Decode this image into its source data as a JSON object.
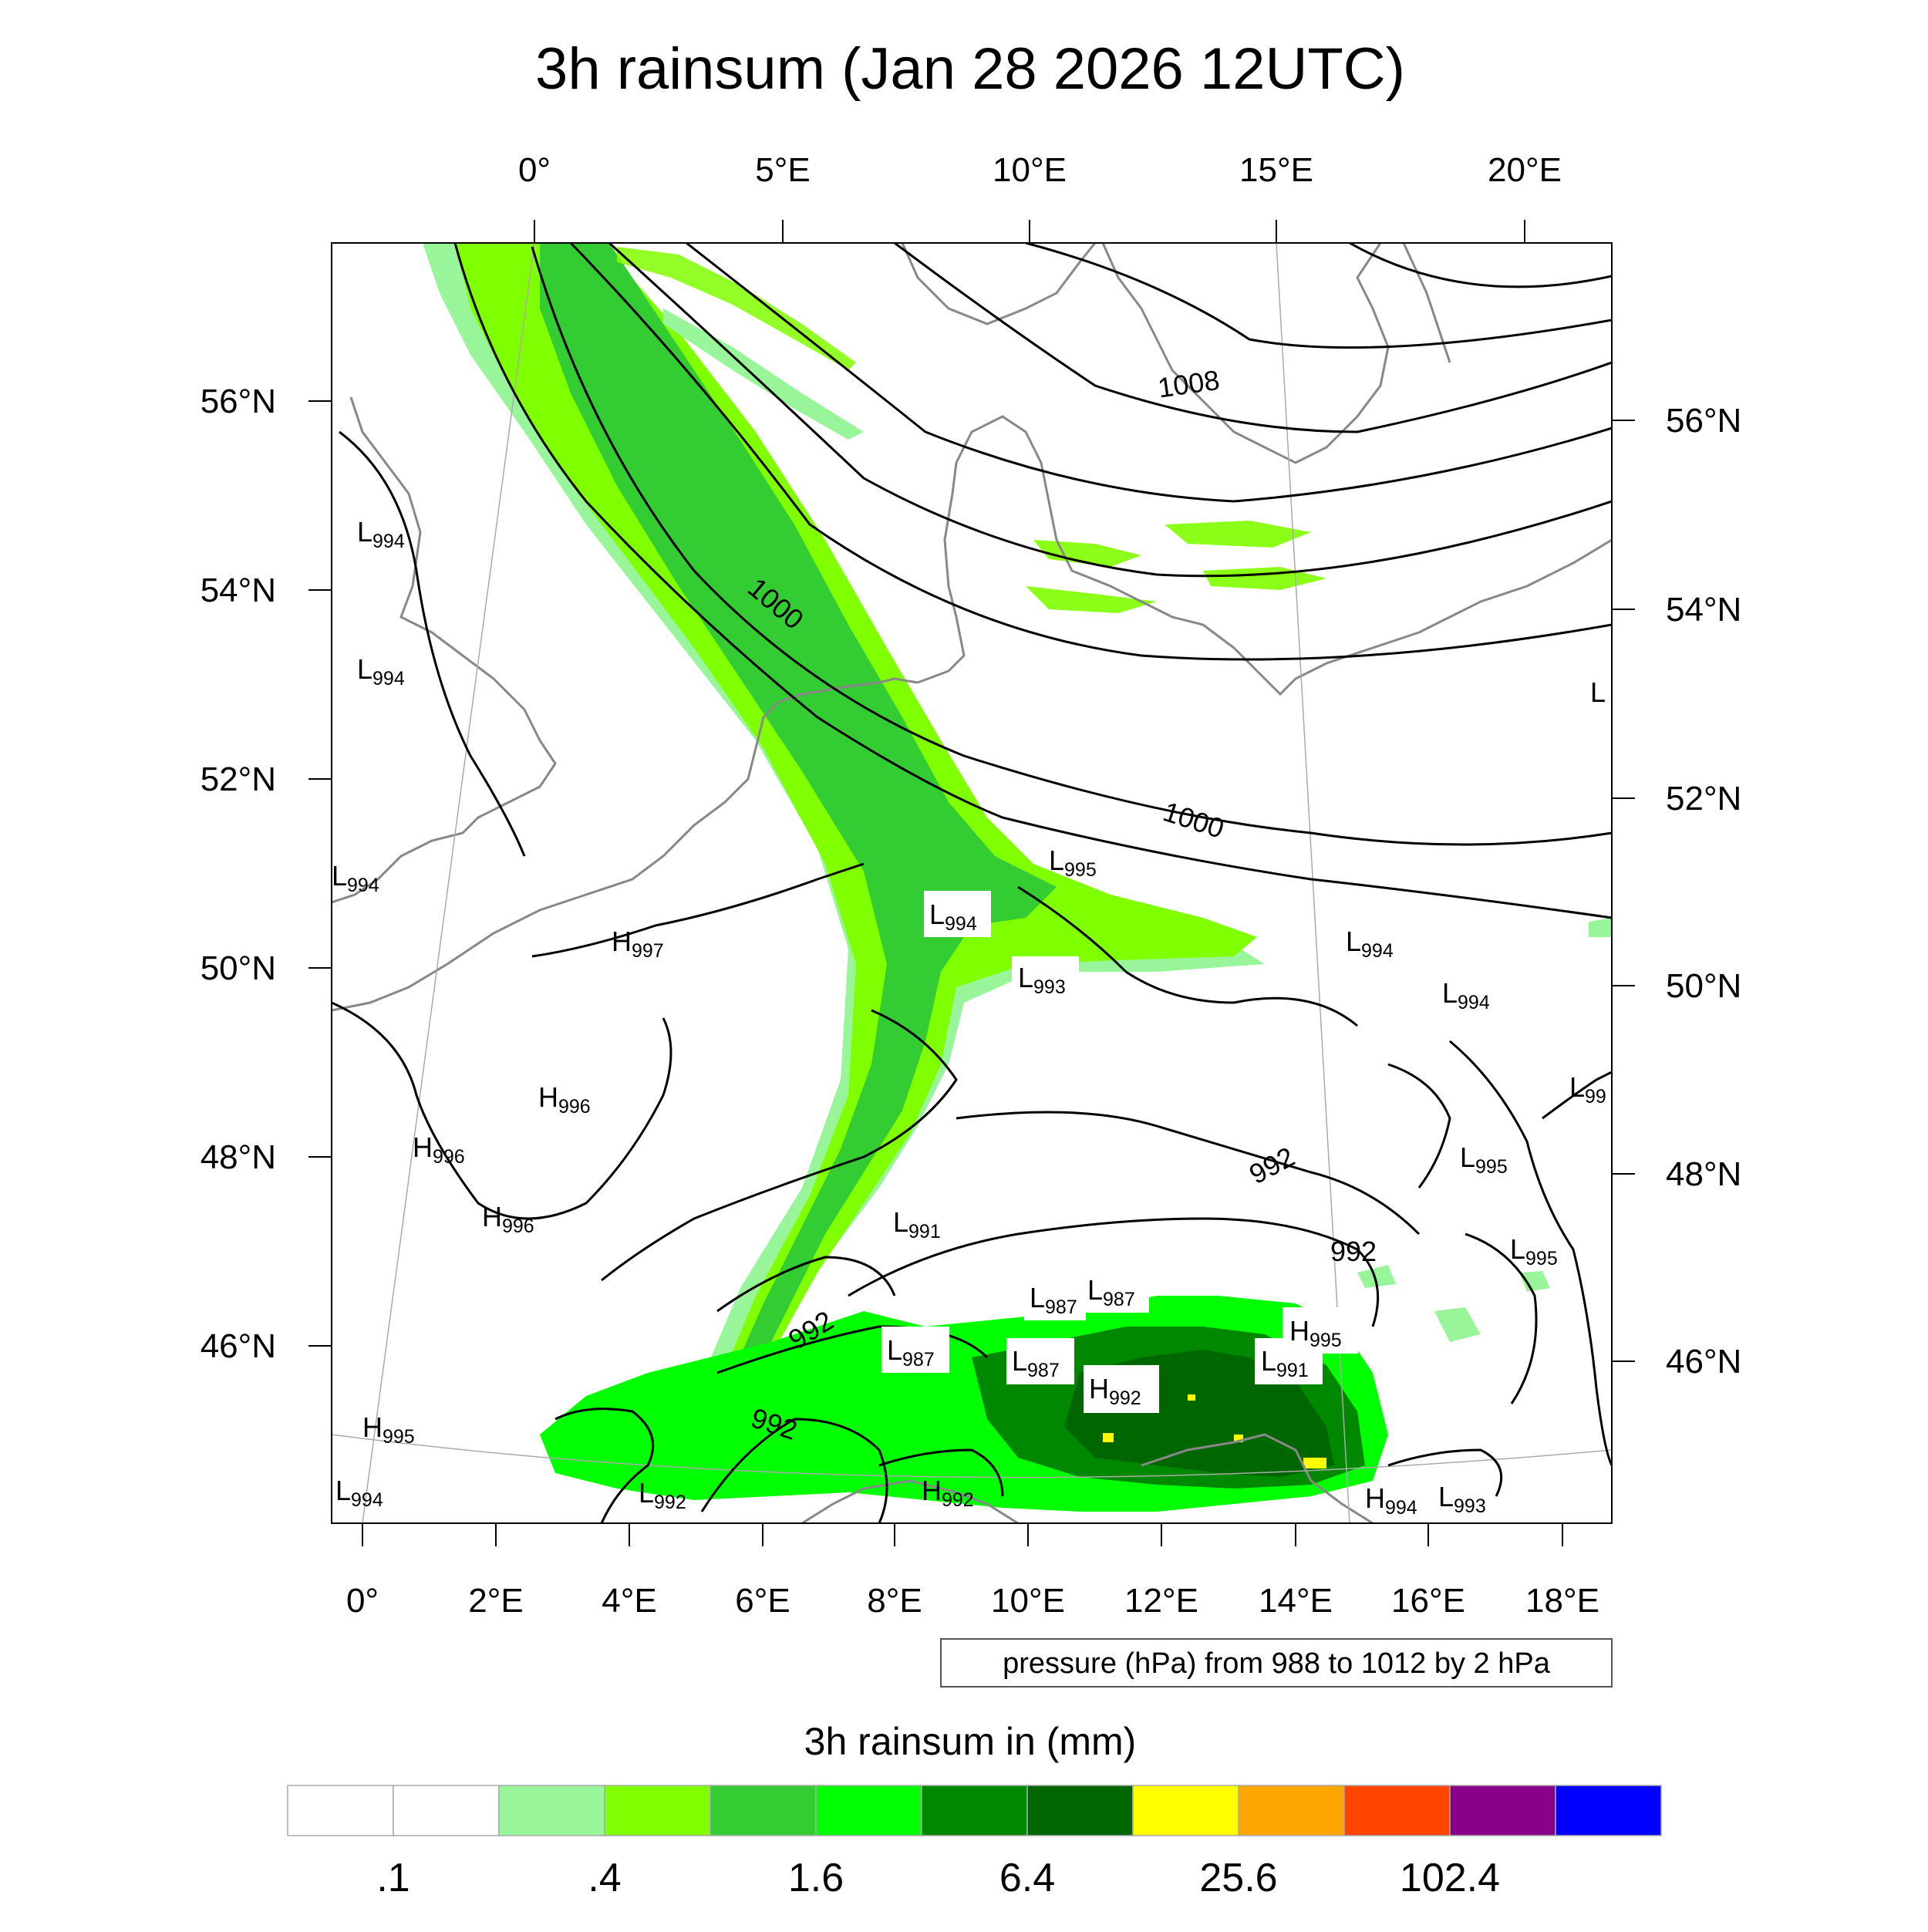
{
  "title": "3h rainsum (Jan 28 2026 12UTC)",
  "top_lon_labels": [
    "0°",
    "5°E",
    "10°E",
    "15°E",
    "20°E"
  ],
  "bottom_lon_labels": [
    "0°",
    "2°E",
    "4°E",
    "6°E",
    "8°E",
    "10°E",
    "12°E",
    "14°E",
    "16°E",
    "18°E"
  ],
  "left_lat_labels": [
    "56°N",
    "54°N",
    "52°N",
    "50°N",
    "48°N",
    "46°N"
  ],
  "right_lat_labels": [
    "56°N",
    "54°N",
    "52°N",
    "50°N",
    "48°N",
    "46°N"
  ],
  "contour_info": "pressure (hPa) from 988 to 1012 by 2 hPa",
  "colorbar": {
    "title": "3h rainsum in (mm)",
    "colors": [
      "#ffffff",
      "#ffffff",
      "#99f599",
      "#80ff00",
      "#33cc33",
      "#00ff00",
      "#008800",
      "#006600",
      "#ffff00",
      "#ffa500",
      "#ff4500",
      "#8b008b",
      "#0000ff"
    ],
    "tick_labels": [
      ".1",
      ".4",
      "1.6",
      "6.4",
      "25.6",
      "102.4"
    ]
  },
  "isobar_labels": [
    "1008",
    "1000",
    "1000",
    "992",
    "992",
    "992",
    "992"
  ],
  "pressure_centers": [
    {
      "type": "L",
      "value": "994"
    },
    {
      "type": "L",
      "value": "994"
    },
    {
      "type": "L",
      "value": "994"
    },
    {
      "type": "H",
      "value": "997"
    },
    {
      "type": "H",
      "value": "996"
    },
    {
      "type": "H",
      "value": "996"
    },
    {
      "type": "H",
      "value": "996"
    },
    {
      "type": "H",
      "value": "995"
    },
    {
      "type": "L",
      "value": "994"
    },
    {
      "type": "L",
      "value": "992"
    },
    {
      "type": "H",
      "value": "992"
    },
    {
      "type": "L",
      "value": "995"
    },
    {
      "type": "L",
      "value": "994"
    },
    {
      "type": "L",
      "value": "993"
    },
    {
      "type": "L",
      "value": "994"
    },
    {
      "type": "L",
      "value": "994"
    },
    {
      "type": "L",
      "value": "991"
    },
    {
      "type": "L",
      "value": "987"
    },
    {
      "type": "L",
      "value": "987"
    },
    {
      "type": "L",
      "value": "987"
    },
    {
      "type": "L",
      "value": "987"
    },
    {
      "type": "H",
      "value": "992"
    },
    {
      "type": "L",
      "value": "991"
    },
    {
      "type": "H",
      "value": "995"
    },
    {
      "type": "H",
      "value": "994"
    },
    {
      "type": "L",
      "value": "993"
    },
    {
      "type": "L",
      "value": "995"
    },
    {
      "type": "L",
      "value": "995"
    },
    {
      "type": "L",
      "value": "99"
    },
    {
      "type": "L",
      "value": ""
    }
  ]
}
